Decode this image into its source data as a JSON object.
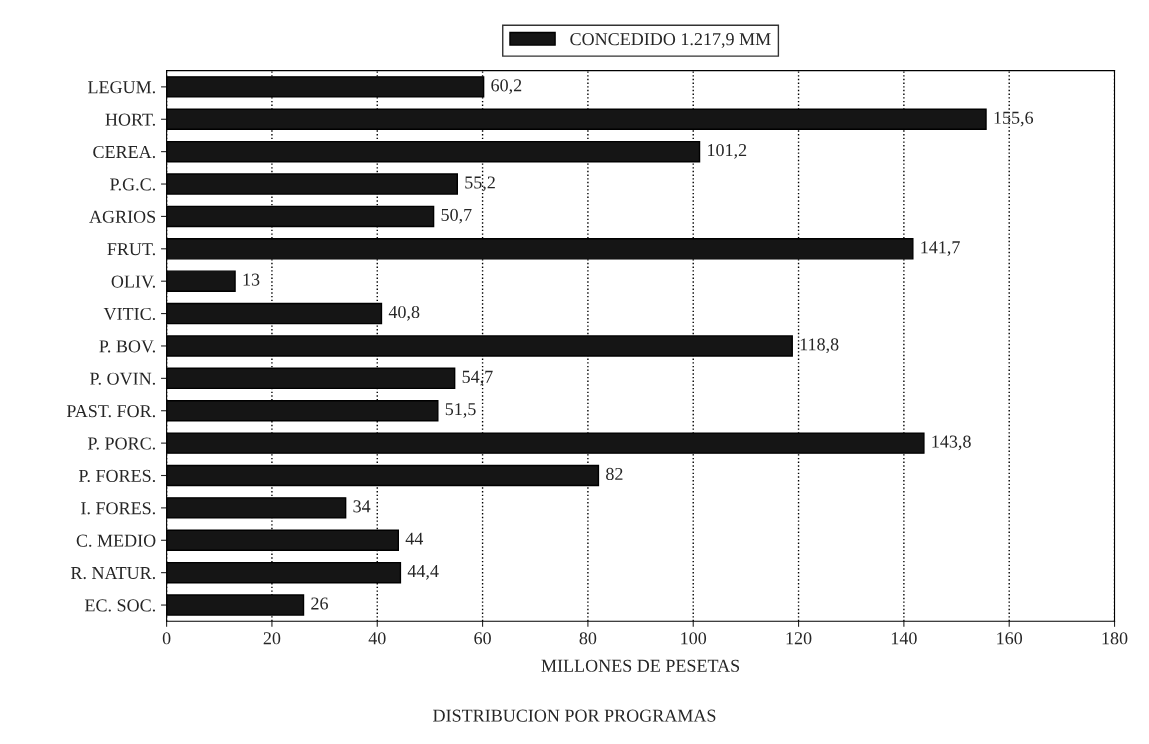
{
  "chart_data": {
    "type": "bar",
    "orientation": "horizontal",
    "title": "DISTRIBUCION POR PROGRAMAS",
    "xlabel": "MILLONES DE PESETAS",
    "categories": [
      "LEGUM.",
      "HORT.",
      "CEREA.",
      "P.G.C.",
      "AGRIOS",
      "FRUT.",
      "OLIV.",
      "VITIC.",
      "P. BOV.",
      "P. OVIN.",
      "PAST. FOR.",
      "P. PORC.",
      "P. FORES.",
      "I. FORES.",
      "C. MEDIO",
      "R. NATUR.",
      "EC. SOC."
    ],
    "series": [
      {
        "name": "CONCEDIDO 1.217,9 MM",
        "color": "#151515",
        "values": [
          60.2,
          155.6,
          101.2,
          55.2,
          50.7,
          141.7,
          13,
          40.8,
          118.8,
          54.7,
          51.5,
          143.8,
          82,
          34,
          44,
          44.4,
          26
        ],
        "value_labels": [
          "60,2",
          "155,6",
          "101,2",
          "55,2",
          "50,7",
          "141,7",
          "13",
          "40,8",
          "118,8",
          "54,7",
          "51,5",
          "143,8",
          "82",
          "34",
          "44",
          "44,4",
          "26"
        ]
      }
    ],
    "xlim": [
      0,
      180
    ],
    "xticks": [
      0,
      20,
      40,
      60,
      80,
      100,
      120,
      140,
      160,
      180
    ],
    "grid": "x",
    "legend": "top"
  }
}
